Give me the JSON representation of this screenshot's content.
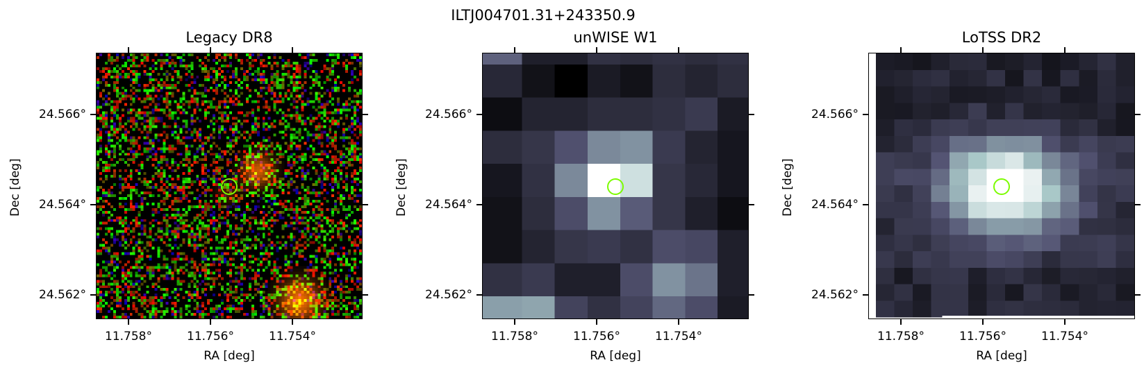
{
  "figure": {
    "suptitle": "ILTJ004701.31+243350.9"
  },
  "panels": [
    {
      "title": "Legacy DR8",
      "xlabel": "RA [deg]",
      "ylabel": "Dec [deg]",
      "xticks": [
        "11.758°",
        "11.756°",
        "11.754°"
      ],
      "yticks": [
        "24.566°",
        "24.564°",
        "24.562°"
      ],
      "colormap": "rgb-composite"
    },
    {
      "title": "unWISE W1",
      "xlabel": "RA [deg]",
      "ylabel": "Dec [deg]",
      "xticks": [
        "11.758°",
        "11.756°",
        "11.754°"
      ],
      "yticks": [
        "24.566°",
        "24.564°",
        "24.562°"
      ],
      "colormap": "bone"
    },
    {
      "title": "LoTSS DR2",
      "xlabel": "RA [deg]",
      "ylabel": "Dec [deg]",
      "xticks": [
        "11.758°",
        "11.756°",
        "11.754°"
      ],
      "yticks": [
        "24.566°",
        "24.564°",
        "24.562°"
      ],
      "colormap": "bone"
    }
  ],
  "marker_color": "#7cfc00"
}
